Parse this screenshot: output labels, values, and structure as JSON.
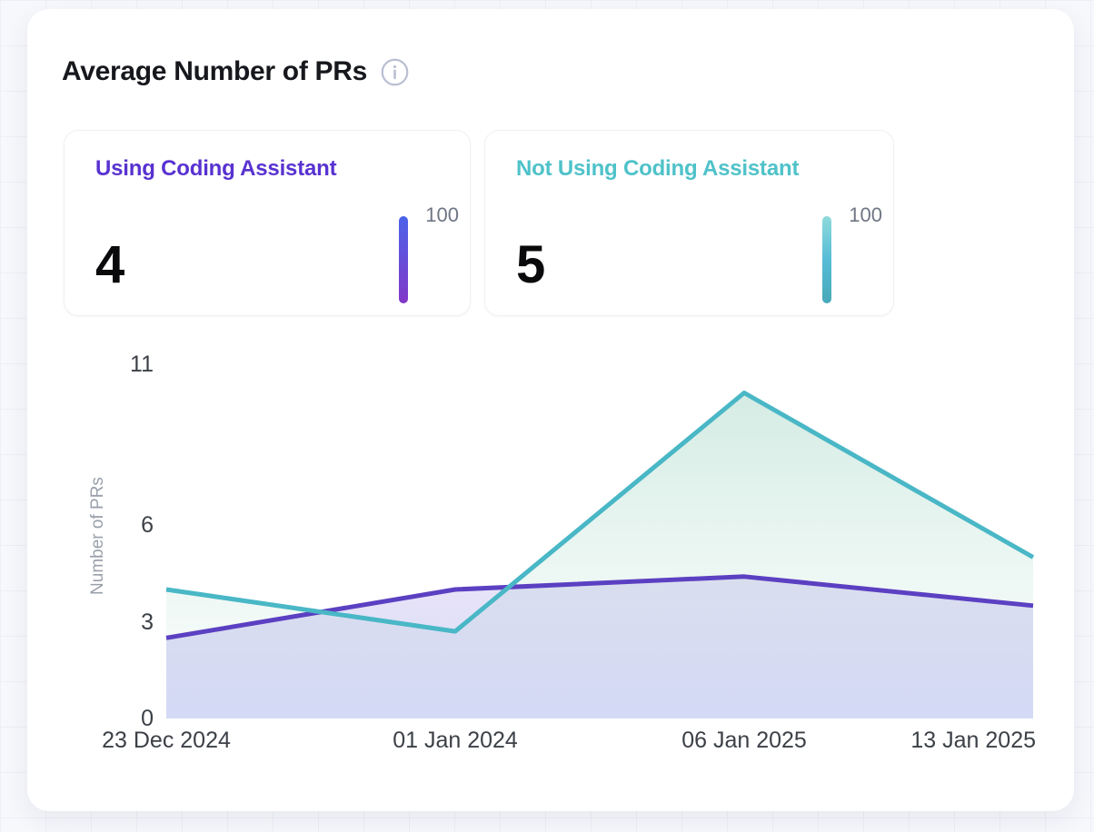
{
  "header": {
    "title": "Average Number of PRs"
  },
  "stat_cards": [
    {
      "label": "Using Coding Assistant",
      "value": "4",
      "scale_max": "100",
      "accent": "#5832d1",
      "bar_gradient": [
        "#4a63e9",
        "#8238c8"
      ]
    },
    {
      "label": "Not Using Coding Assistant",
      "value": "5",
      "scale_max": "100",
      "accent": "#4fc2c9",
      "bar_gradient": [
        "#8edadb",
        "#57bcd7",
        "#47a9b8"
      ]
    }
  ],
  "chart_data": {
    "type": "area",
    "title": "Average Number of PRs",
    "categories": [
      "23 Dec 2024",
      "01 Jan 2024",
      "06 Jan 2025",
      "13 Jan 2025"
    ],
    "series": [
      {
        "name": "Using Coding Assistant",
        "values": [
          2.5,
          4.0,
          4.4,
          3.5
        ],
        "line_color": "#5b40c2",
        "area_top": "rgba(112,92,210,0.16)",
        "area_bottom": "rgba(100,114,226,0.26)"
      },
      {
        "name": "Not Using Coding Assistant",
        "values": [
          4.0,
          2.7,
          10.1,
          5.0
        ],
        "line_color": "#49b7c6",
        "area_top": "rgba(90,180,150,0.26)",
        "area_bottom": "rgba(144,210,184,0.04)"
      }
    ],
    "xlabel": "",
    "ylabel": "Number of PRs",
    "yticks": [
      0,
      3,
      6,
      11
    ],
    "ylim": [
      0,
      11
    ],
    "grid": false,
    "legend_position": "none"
  },
  "icons": {
    "info": "info-circle"
  }
}
